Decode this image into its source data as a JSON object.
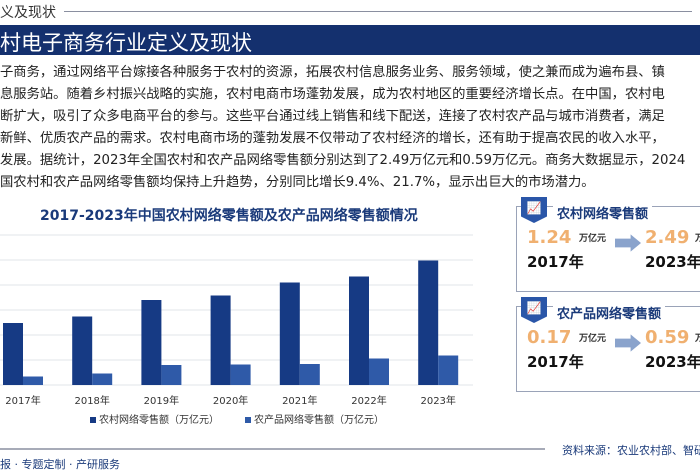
{
  "header": {
    "section": "义及现状",
    "title": "村电子商务行业定义及现状"
  },
  "paragraph": [
    "子商务，通过网络平台嫁接各种服务于农村的资源，拓展农村信息服务业务、服务领域，使之兼而成为遍布县、镇",
    "息服务站。随着乡村振兴战略的实施，农村电商市场蓬勃发展，成为农村地区的重要经济增长点。在中国，农村电",
    "断扩大，吸引了众多电商平台的参与。这些平台通过线上销售和线下配送，连接了农村农产品与城市消费者，满足",
    "新鲜、优质农产品的需求。农村电商市场的蓬勃发展不仅带动了农村经济的增长，还有助于提高农民的收入水平，",
    "发展。据统计，2023年全国农村和农产品网络零售额分别达到了2.49万亿元和0.59万亿元。商务大数据显示，2024",
    "国农村和农产品网络零售额均保持上升趋势，分别同比增长9.4%、21.7%，显示出巨大的市场潜力。"
  ],
  "chart_data": {
    "type": "bar",
    "title": "2017-2023年中国农村网络零售额及农产品网络零售额情况",
    "categories": [
      "2017年",
      "2018年",
      "2019年",
      "2020年",
      "2021年",
      "2022年",
      "2023年"
    ],
    "series": [
      {
        "name": "农村网络零售额（万亿元）",
        "values": [
          1.24,
          1.37,
          1.7,
          1.79,
          2.05,
          2.17,
          2.49
        ],
        "color": "#163a84"
      },
      {
        "name": "农产品网络零售额（万亿元）",
        "values": [
          0.17,
          0.23,
          0.4,
          0.41,
          0.42,
          0.53,
          0.59
        ],
        "color": "#2f5aa8"
      }
    ],
    "ylim": [
      0,
      3
    ],
    "grid": true,
    "legend": "bottom"
  },
  "cards": [
    {
      "title": "农村网络零售额",
      "from_value": "1.24",
      "to_value": "2.49",
      "unit": "万亿元",
      "from_year": "2017年",
      "to_year": "2023年"
    },
    {
      "title": "农产品网络零售额",
      "from_value": "0.17",
      "to_value": "0.59",
      "unit": "万亿元",
      "from_year": "2017年",
      "to_year": "2023年"
    }
  ],
  "footer": {
    "services": "报 · 专题定制 · 产研服务",
    "source": "资料来源：农业农村部、智研咨询"
  }
}
